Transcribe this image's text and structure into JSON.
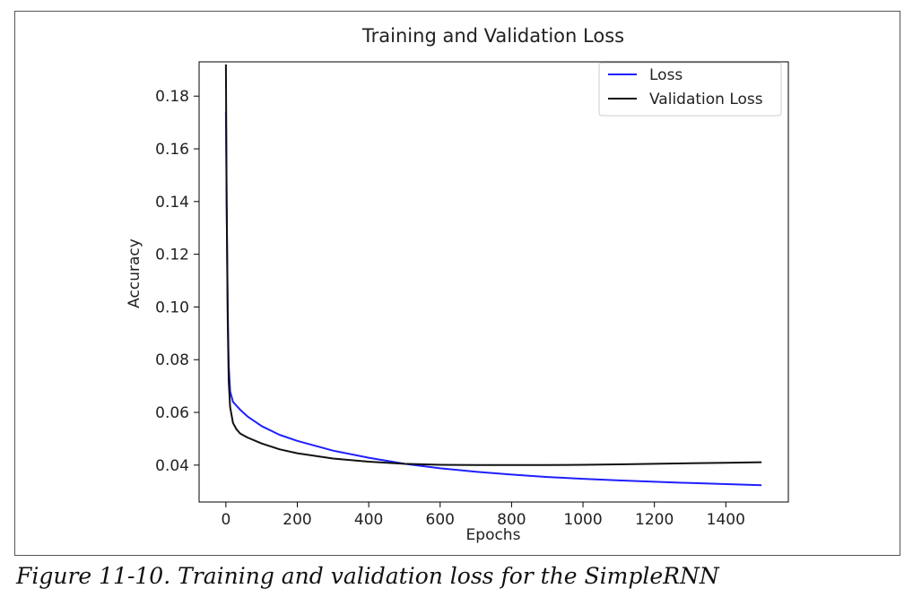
{
  "caption": "Figure 11-10. Training and validation loss for the SimpleRNN",
  "chart_data": {
    "type": "line",
    "title": "Training and Validation Loss",
    "xlabel": "Epochs",
    "ylabel": "Accuracy",
    "xlim": [
      -75,
      1575
    ],
    "ylim": [
      0.026,
      0.193
    ],
    "xticks": [
      0,
      200,
      400,
      600,
      800,
      1000,
      1200,
      1400
    ],
    "yticks": [
      0.04,
      0.06,
      0.08,
      0.1,
      0.12,
      0.14,
      0.16,
      0.18
    ],
    "ytick_labels": [
      "0.04",
      "0.06",
      "0.08",
      "0.10",
      "0.12",
      "0.14",
      "0.16",
      "0.18"
    ],
    "grid": false,
    "legend_position": "top-right",
    "series": [
      {
        "name": "Loss",
        "color": "#1f1fff",
        "x": [
          0,
          2,
          5,
          8,
          12,
          20,
          40,
          60,
          100,
          150,
          200,
          300,
          400,
          500,
          600,
          700,
          800,
          900,
          1000,
          1100,
          1200,
          1300,
          1400,
          1500
        ],
        "y": [
          0.174,
          0.14,
          0.1,
          0.078,
          0.068,
          0.064,
          0.061,
          0.0585,
          0.0548,
          0.0515,
          0.0492,
          0.0455,
          0.0428,
          0.0405,
          0.0388,
          0.0375,
          0.0364,
          0.0355,
          0.0348,
          0.0342,
          0.0337,
          0.0332,
          0.0328,
          0.0324
        ]
      },
      {
        "name": "Validation Loss",
        "color": "#111111",
        "x": [
          0,
          2,
          5,
          8,
          12,
          20,
          30,
          40,
          60,
          100,
          150,
          200,
          300,
          400,
          500,
          600,
          700,
          800,
          900,
          1000,
          1100,
          1200,
          1300,
          1400,
          1500
        ],
        "y": [
          0.192,
          0.14,
          0.095,
          0.072,
          0.062,
          0.056,
          0.0535,
          0.052,
          0.0505,
          0.0482,
          0.046,
          0.0445,
          0.0425,
          0.0413,
          0.0405,
          0.0401,
          0.04,
          0.04,
          0.04,
          0.0401,
          0.0403,
          0.0405,
          0.0407,
          0.0409,
          0.0411
        ]
      }
    ]
  }
}
